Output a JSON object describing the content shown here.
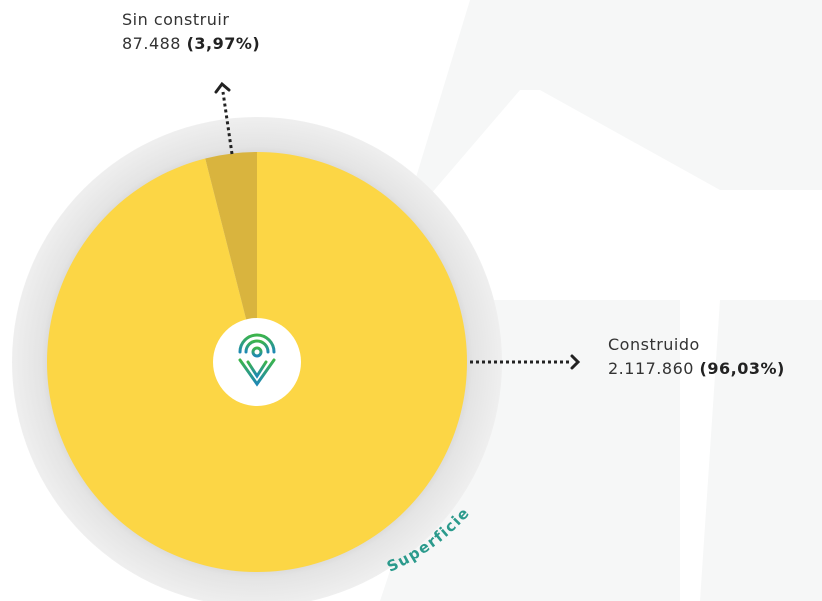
{
  "chart_data": {
    "type": "pie",
    "categories": [
      "Sin construir",
      "Construido"
    ],
    "values": [
      87488,
      2117860
    ],
    "value_labels": [
      "87.488",
      "2.117.860"
    ],
    "percent_labels": [
      "(3,97%)",
      "(96,03%)"
    ],
    "colors": [
      "#d9b43e",
      "#fcd645"
    ],
    "annotation": "Superficie"
  }
}
